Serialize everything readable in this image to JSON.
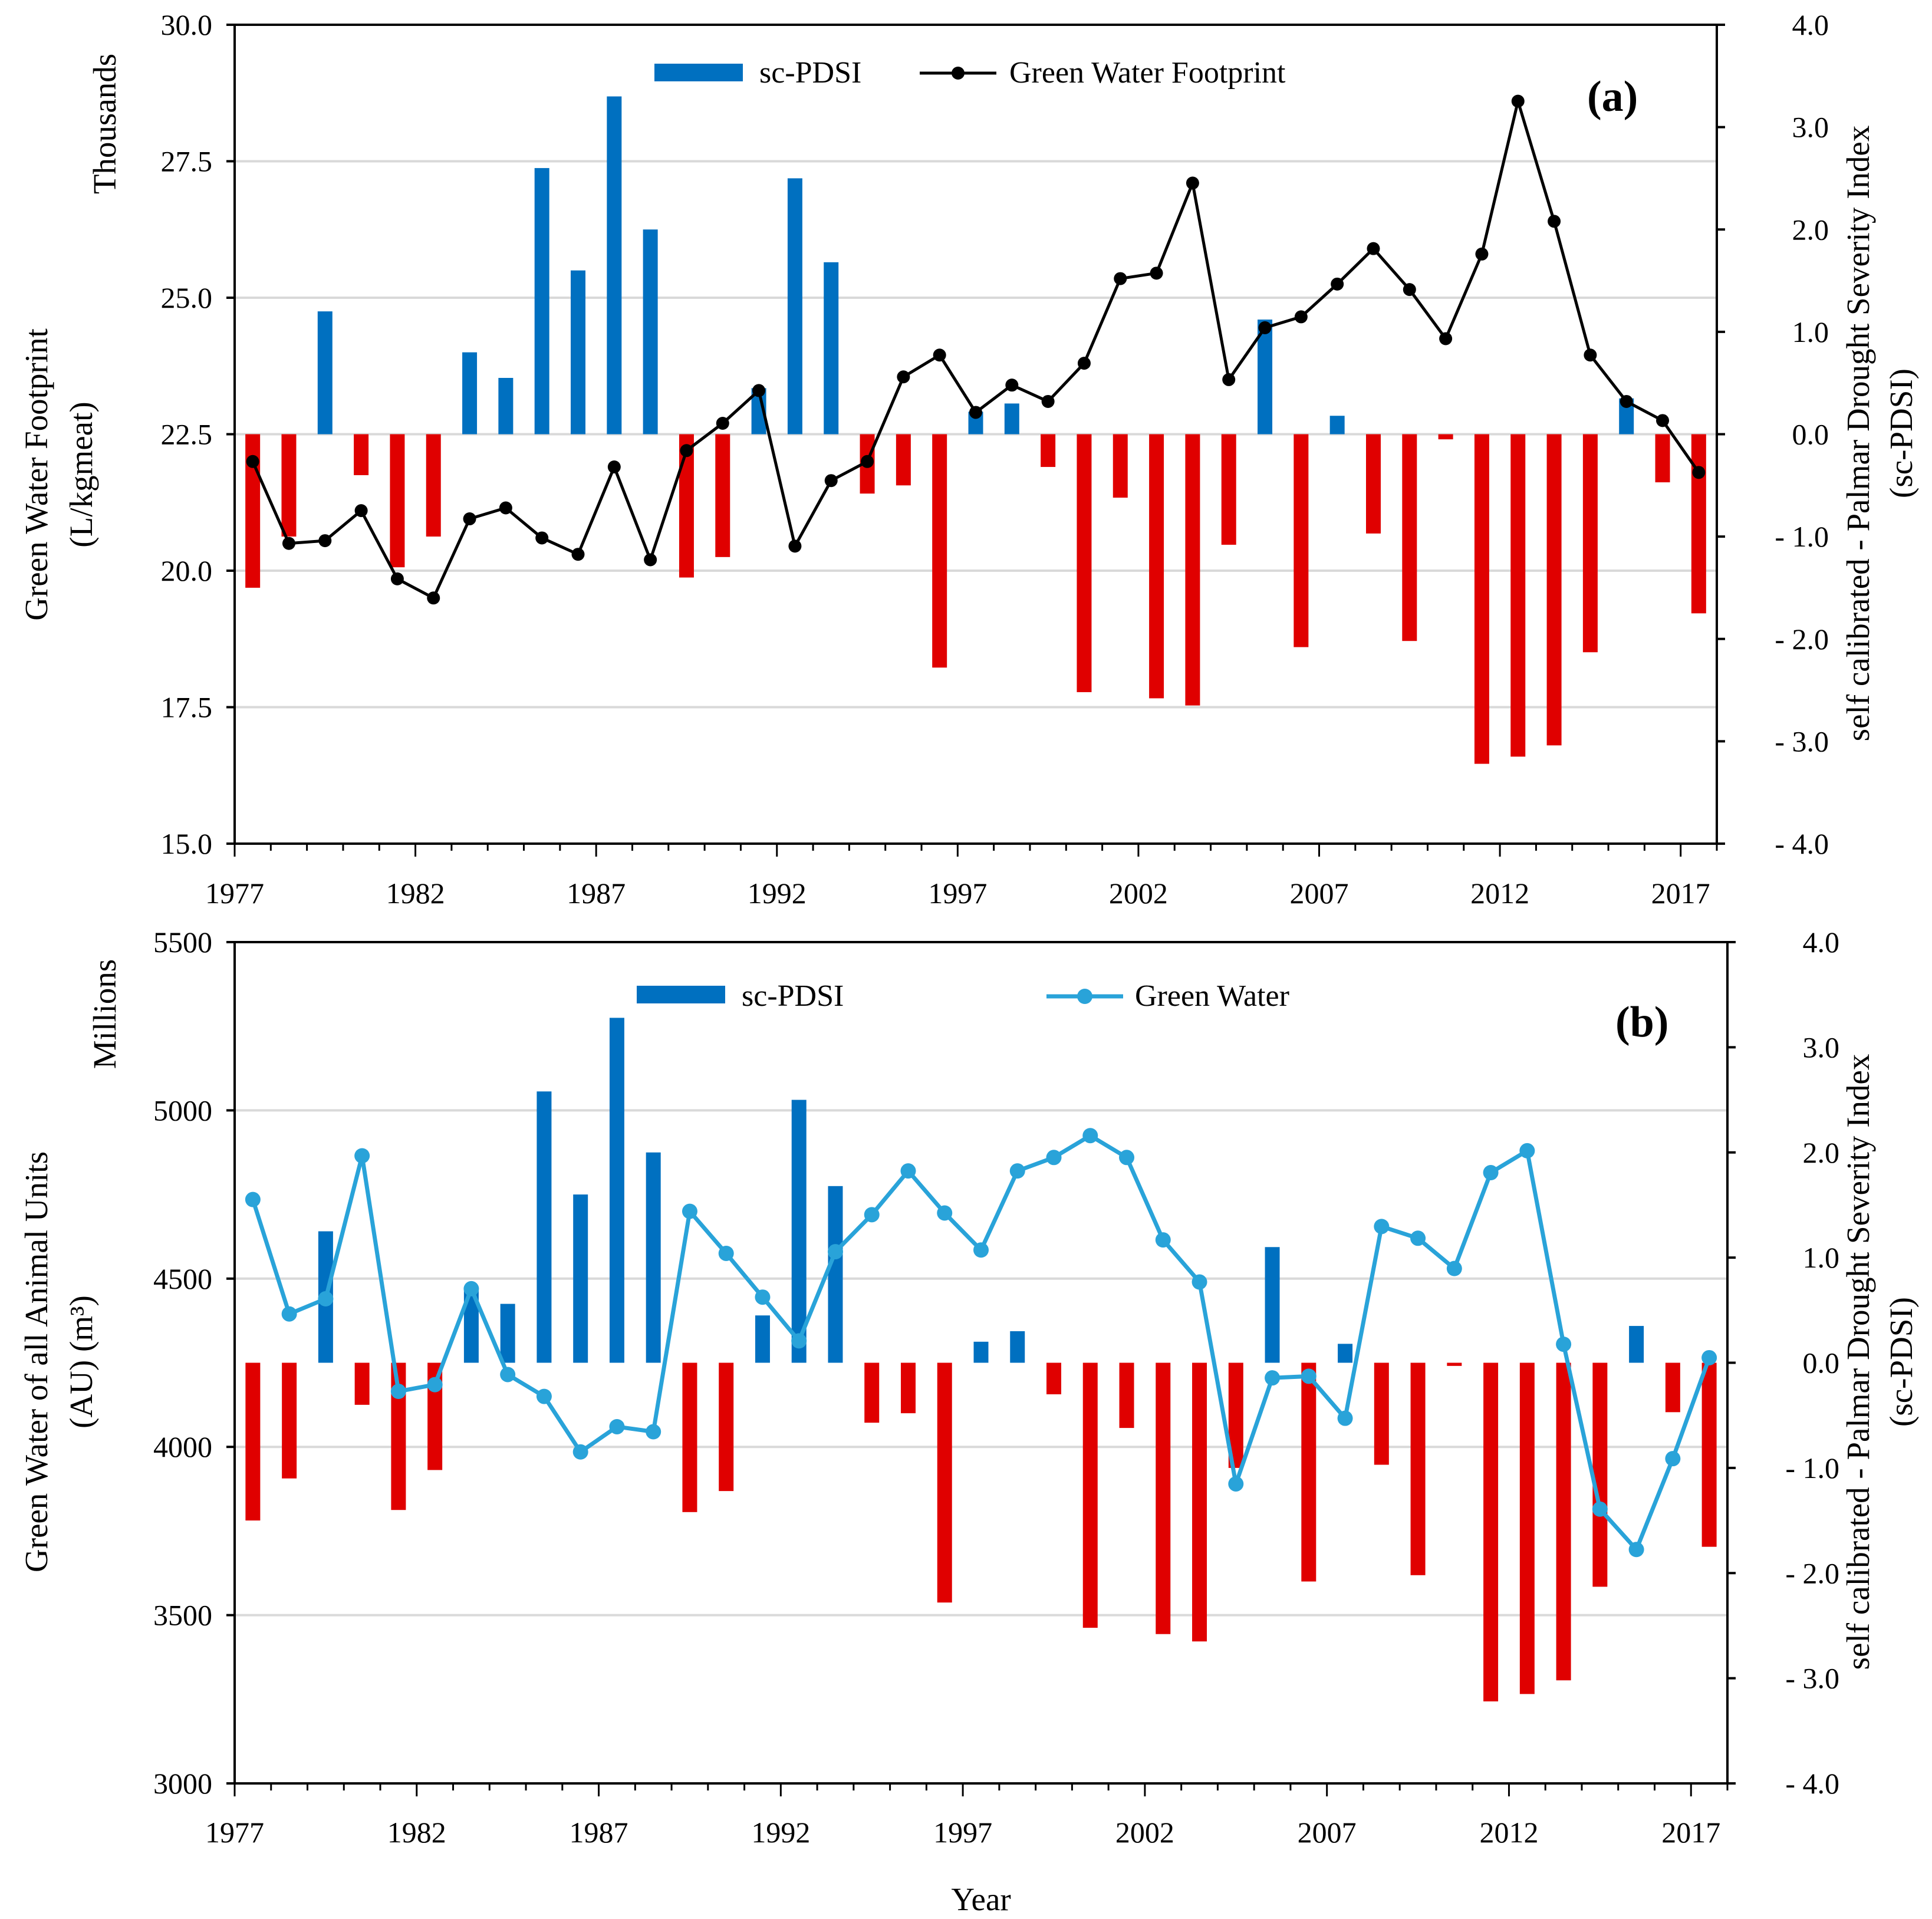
{
  "chart_data": [
    {
      "type": "bar",
      "panel_label": "(a)",
      "xlabel": "",
      "x_ticks": [
        "1977",
        "1982",
        "1987",
        "1992",
        "1997",
        "2002",
        "2007",
        "2012",
        "2017"
      ],
      "y_left": {
        "title": "Green Water Footprint",
        "subtitle": "(L/kgmeat)",
        "units_label": "Thousands",
        "range": [
          15.0,
          30.0
        ],
        "ticks": [
          "15.0",
          "17.5",
          "20.0",
          "22.5",
          "25.0",
          "27.5",
          "30.0"
        ]
      },
      "y_right": {
        "title": "self calibrated - Palmar Drought Severity Index",
        "subtitle": "(sc-PDSI)",
        "range": [
          -4.0,
          4.0
        ],
        "ticks": [
          "- 4.0",
          "- 3.0",
          "- 2.0",
          "- 1.0",
          "0.0",
          "1.0",
          "2.0",
          "3.0",
          "4.0"
        ]
      },
      "legend": {
        "bar_label": "sc-PDSI",
        "line_label": "Green Water Footprint",
        "position": "top-center"
      },
      "colors": {
        "bar_positive": "#0070c0",
        "bar_negative": "#e00000",
        "line": "#000000",
        "marker": "#000000"
      },
      "years": [
        1977,
        1978,
        1979,
        1980,
        1981,
        1982,
        1983,
        1984,
        1985,
        1986,
        1987,
        1988,
        1989,
        1990,
        1991,
        1992,
        1993,
        1994,
        1995,
        1996,
        1997,
        1998,
        1999,
        2000,
        2001,
        2002,
        2003,
        2004,
        2005,
        2006,
        2007,
        2008,
        2009,
        2010,
        2011,
        2012,
        2013,
        2014,
        2015,
        2016,
        2017
      ],
      "pdsi": [
        -1.5,
        -1.0,
        1.2,
        -0.4,
        -1.3,
        -1.0,
        0.8,
        0.55,
        2.6,
        1.6,
        3.3,
        2.0,
        -1.4,
        -1.2,
        0.45,
        2.5,
        1.68,
        -0.58,
        -0.5,
        -2.28,
        0.22,
        0.3,
        -0.32,
        -2.52,
        -0.62,
        -2.58,
        -2.65,
        -1.08,
        1.12,
        -2.08,
        0.18,
        -0.97,
        -2.02,
        -0.05,
        -3.22,
        -3.15,
        -3.04,
        -2.13,
        0.35,
        -0.47,
        -1.75
      ],
      "series": [
        {
          "name": "Green Water Footprint",
          "values": [
            22.0,
            20.5,
            20.55,
            21.1,
            19.85,
            19.5,
            20.95,
            21.15,
            20.6,
            20.3,
            21.9,
            20.2,
            22.2,
            22.7,
            23.3,
            20.45,
            21.65,
            22.0,
            23.55,
            23.95,
            22.9,
            23.4,
            23.1,
            23.8,
            25.35,
            25.45,
            27.1,
            23.5,
            24.45,
            24.65,
            25.25,
            25.9,
            25.15,
            24.25,
            25.8,
            28.6,
            26.4,
            23.95,
            23.1,
            22.75,
            21.8
          ]
        }
      ]
    },
    {
      "type": "bar",
      "panel_label": "(b)",
      "xlabel": "Year",
      "x_ticks": [
        "1977",
        "1982",
        "1987",
        "1992",
        "1997",
        "2002",
        "2007",
        "2012",
        "2017"
      ],
      "y_left": {
        "title": "Green Water of all Animal Units",
        "subtitle": "(AU) (m³)",
        "units_label": "Millions",
        "range": [
          3000,
          5500
        ],
        "ticks": [
          "3000",
          "3500",
          "4000",
          "4500",
          "5000",
          "5500"
        ]
      },
      "y_right": {
        "title": "self calibrated - Palmar Drought Severity Index",
        "subtitle": "(sc-PDSI)",
        "range": [
          -4.0,
          4.0
        ],
        "ticks": [
          "- 4.0",
          "- 3.0",
          "- 2.0",
          "- 1.0",
          "0.0",
          "1.0",
          "2.0",
          "3.0",
          "4.0"
        ]
      },
      "legend": {
        "bar_label": "sc-PDSI",
        "line_label": "Green Water",
        "position": "top-center"
      },
      "colors": {
        "bar_positive": "#0070c0",
        "bar_negative": "#e00000",
        "line": "#29a3d9",
        "marker": "#29a3d9"
      },
      "years": [
        1977,
        1978,
        1979,
        1980,
        1981,
        1982,
        1983,
        1984,
        1985,
        1986,
        1987,
        1988,
        1989,
        1990,
        1991,
        1992,
        1993,
        1994,
        1995,
        1996,
        1997,
        1998,
        1999,
        2000,
        2001,
        2002,
        2003,
        2004,
        2005,
        2006,
        2007,
        2008,
        2009,
        2010,
        2011,
        2012,
        2013,
        2014,
        2015,
        2016,
        2017
      ],
      "pdsi": [
        -1.5,
        -1.1,
        1.25,
        -0.4,
        -1.4,
        -1.02,
        0.7,
        0.56,
        2.58,
        1.6,
        3.28,
        2.0,
        -1.42,
        -1.22,
        0.45,
        2.5,
        1.68,
        -0.57,
        -0.48,
        -2.28,
        0.2,
        0.3,
        -0.3,
        -2.52,
        -0.62,
        -2.58,
        -2.65,
        -1.0,
        1.1,
        -2.08,
        0.18,
        -0.97,
        -2.02,
        -0.03,
        -3.22,
        -3.15,
        -3.02,
        -2.13,
        0.35,
        -0.47,
        -1.75
      ],
      "series": [
        {
          "name": "Green Water",
          "values": [
            4735,
            4395,
            4440,
            4865,
            4165,
            4185,
            4470,
            4215,
            4150,
            3985,
            4060,
            4045,
            4700,
            4575,
            4445,
            4315,
            4580,
            4690,
            4820,
            4695,
            4585,
            4820,
            4860,
            4925,
            4860,
            4615,
            4490,
            3890,
            4205,
            4210,
            4085,
            4655,
            4620,
            4530,
            4815,
            4880,
            4305,
            3815,
            3695,
            3965,
            4265
          ]
        }
      ]
    }
  ]
}
